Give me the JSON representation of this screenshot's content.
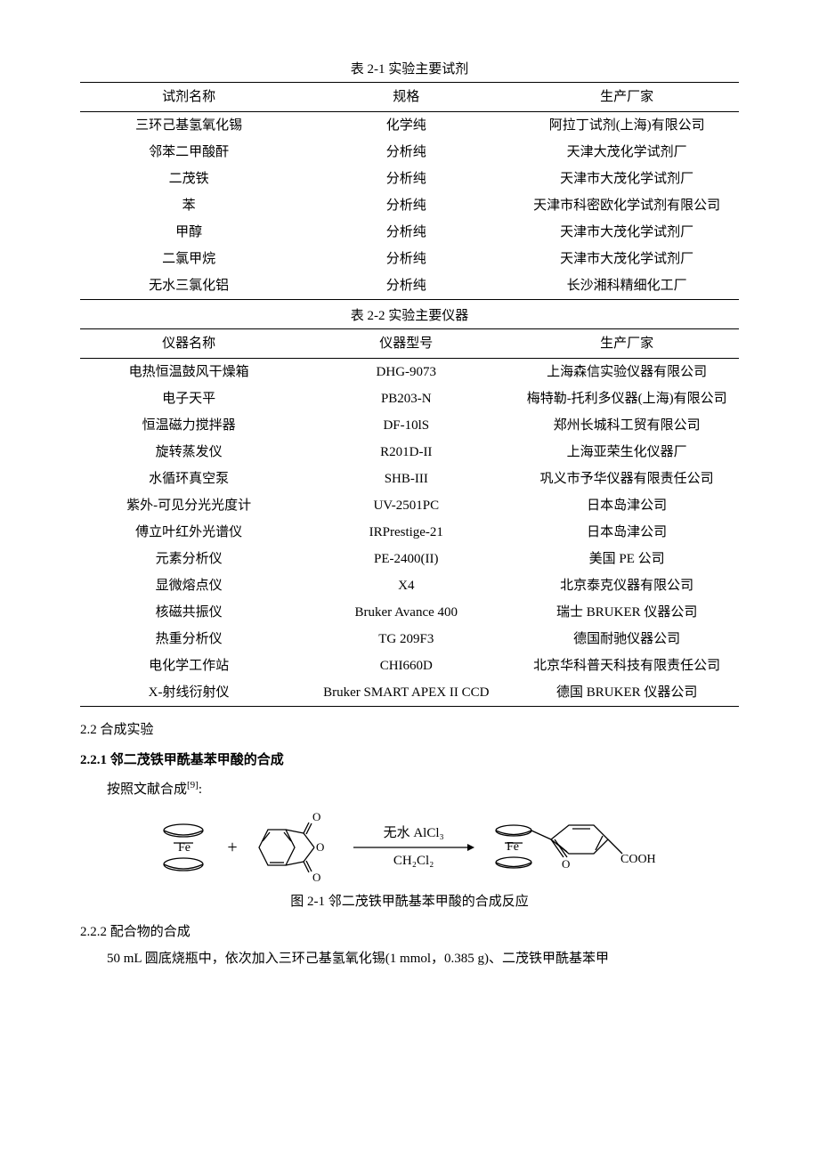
{
  "table1": {
    "caption": "表 2-1  实验主要试剂",
    "headers": [
      "试剂名称",
      "规格",
      "生产厂家"
    ],
    "rows": [
      [
        "三环己基氢氧化锡",
        "化学纯",
        "阿拉丁试剂(上海)有限公司"
      ],
      [
        "邻苯二甲酸酐",
        "分析纯",
        "天津大茂化学试剂厂"
      ],
      [
        "二茂铁",
        "分析纯",
        "天津市大茂化学试剂厂"
      ],
      [
        "苯",
        "分析纯",
        "天津市科密欧化学试剂有限公司"
      ],
      [
        "甲醇",
        "分析纯",
        "天津市大茂化学试剂厂"
      ],
      [
        "二氯甲烷",
        "分析纯",
        "天津市大茂化学试剂厂"
      ],
      [
        "无水三氯化铝",
        "分析纯",
        "长沙湘科精细化工厂"
      ]
    ]
  },
  "table2": {
    "caption": "表 2-2  实验主要仪器",
    "headers": [
      "仪器名称",
      "仪器型号",
      "生产厂家"
    ],
    "rows": [
      [
        "电热恒温鼓风干燥箱",
        "DHG-9073",
        "上海森信实验仪器有限公司"
      ],
      [
        "电子天平",
        "PB203-N",
        "梅特勒-托利多仪器(上海)有限公司"
      ],
      [
        "恒温磁力搅拌器",
        "DF-10lS",
        "郑州长城科工贸有限公司"
      ],
      [
        "旋转蒸发仪",
        "R201D-II",
        "上海亚荣生化仪器厂"
      ],
      [
        "水循环真空泵",
        "SHB-III",
        "巩义市予华仪器有限责任公司"
      ],
      [
        "紫外-可见分光光度计",
        "UV-2501PC",
        "日本岛津公司"
      ],
      [
        "傅立叶红外光谱仪",
        "IRPrestige-21",
        "日本岛津公司"
      ],
      [
        "元素分析仪",
        "PE-2400(II)",
        "美国 PE 公司"
      ],
      [
        "显微熔点仪",
        "X4",
        "北京泰克仪器有限公司"
      ],
      [
        "核磁共振仪",
        "Bruker Avance 400",
        "瑞士 BRUKER 仪器公司"
      ],
      [
        "热重分析仪",
        "TG 209F3",
        "德国耐驰仪器公司"
      ],
      [
        "电化学工作站",
        "CHI660D",
        "北京华科普天科技有限责任公司"
      ],
      [
        "X-射线衍射仪",
        "Bruker SMART APEX II CCD",
        "德国 BRUKER 仪器公司"
      ]
    ]
  },
  "section22": "2.2  合成实验",
  "section221": "2.2.1  邻二茂铁甲酰基苯甲酸的合成",
  "paragraph221_lead": "按照文献合成",
  "paragraph221_ref": "[9]",
  "paragraph221_tail": ":",
  "reaction": {
    "plus": "+",
    "arrow_top": "无水 AlCl₃",
    "arrow_line": "————————→",
    "arrow_bot": "CH₂Cl₂",
    "fe_label": "Fe",
    "cooh_label": "COOH"
  },
  "fig21_caption": "图 2-1  邻二茂铁甲酰基苯甲酸的合成反应",
  "section222": "2.2.2  配合物的合成",
  "paragraph222": "50 mL 圆底烧瓶中，依次加入三环己基氢氧化锡(1 mmol，0.385 g)、二茂铁甲酰基苯甲"
}
